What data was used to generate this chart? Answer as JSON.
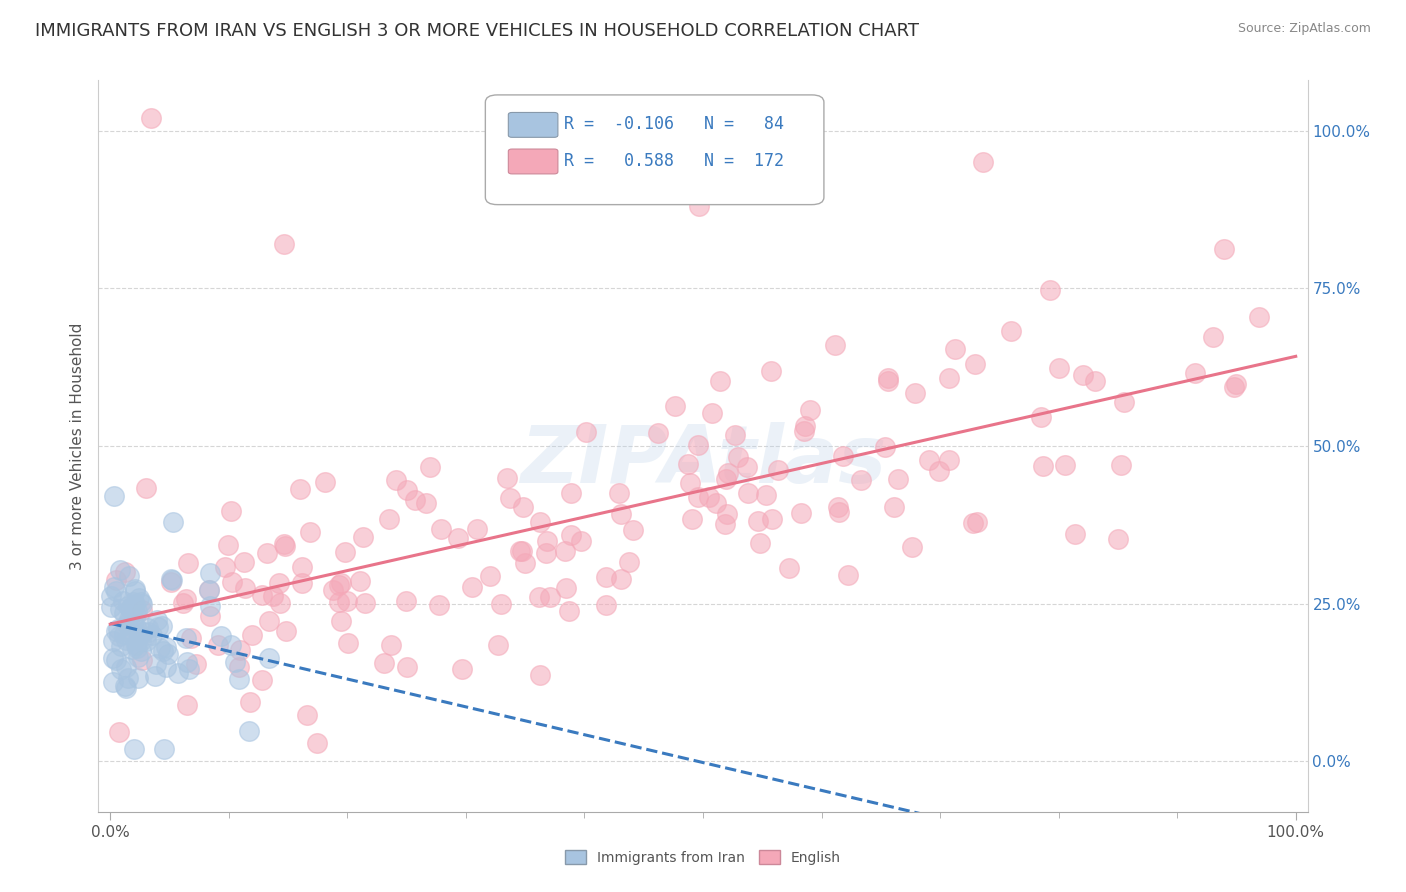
{
  "title": "IMMIGRANTS FROM IRAN VS ENGLISH 3 OR MORE VEHICLES IN HOUSEHOLD CORRELATION CHART",
  "source": "Source: ZipAtlas.com",
  "xlabel": "",
  "ylabel": "3 or more Vehicles in Household",
  "xmin": 0.0,
  "xmax": 1.0,
  "ymin": -0.08,
  "ymax": 1.08,
  "legend_label1": "Immigrants from Iran",
  "legend_label2": "English",
  "R1": -0.106,
  "N1": 84,
  "R2": 0.588,
  "N2": 172,
  "color1": "#a8c4e0",
  "color2": "#f4a8b8",
  "line_color1": "#3a7abf",
  "line_color2": "#e8748a",
  "background_color": "#ffffff",
  "title_fontsize": 13,
  "axis_label_fontsize": 11,
  "tick_label_fontsize": 11,
  "ytick_labels": [
    "0.0%",
    "25.0%",
    "50.0%",
    "75.0%",
    "100.0%"
  ],
  "ytick_values": [
    0.0,
    0.25,
    0.5,
    0.75,
    1.0
  ],
  "xtick_labels": [
    "0.0%",
    "100.0%"
  ],
  "xtick_values": [
    0.0,
    1.0
  ],
  "legend_R1_text": "R =  -0.106   N =   84",
  "legend_R2_text": "R =   0.588   N =  172"
}
